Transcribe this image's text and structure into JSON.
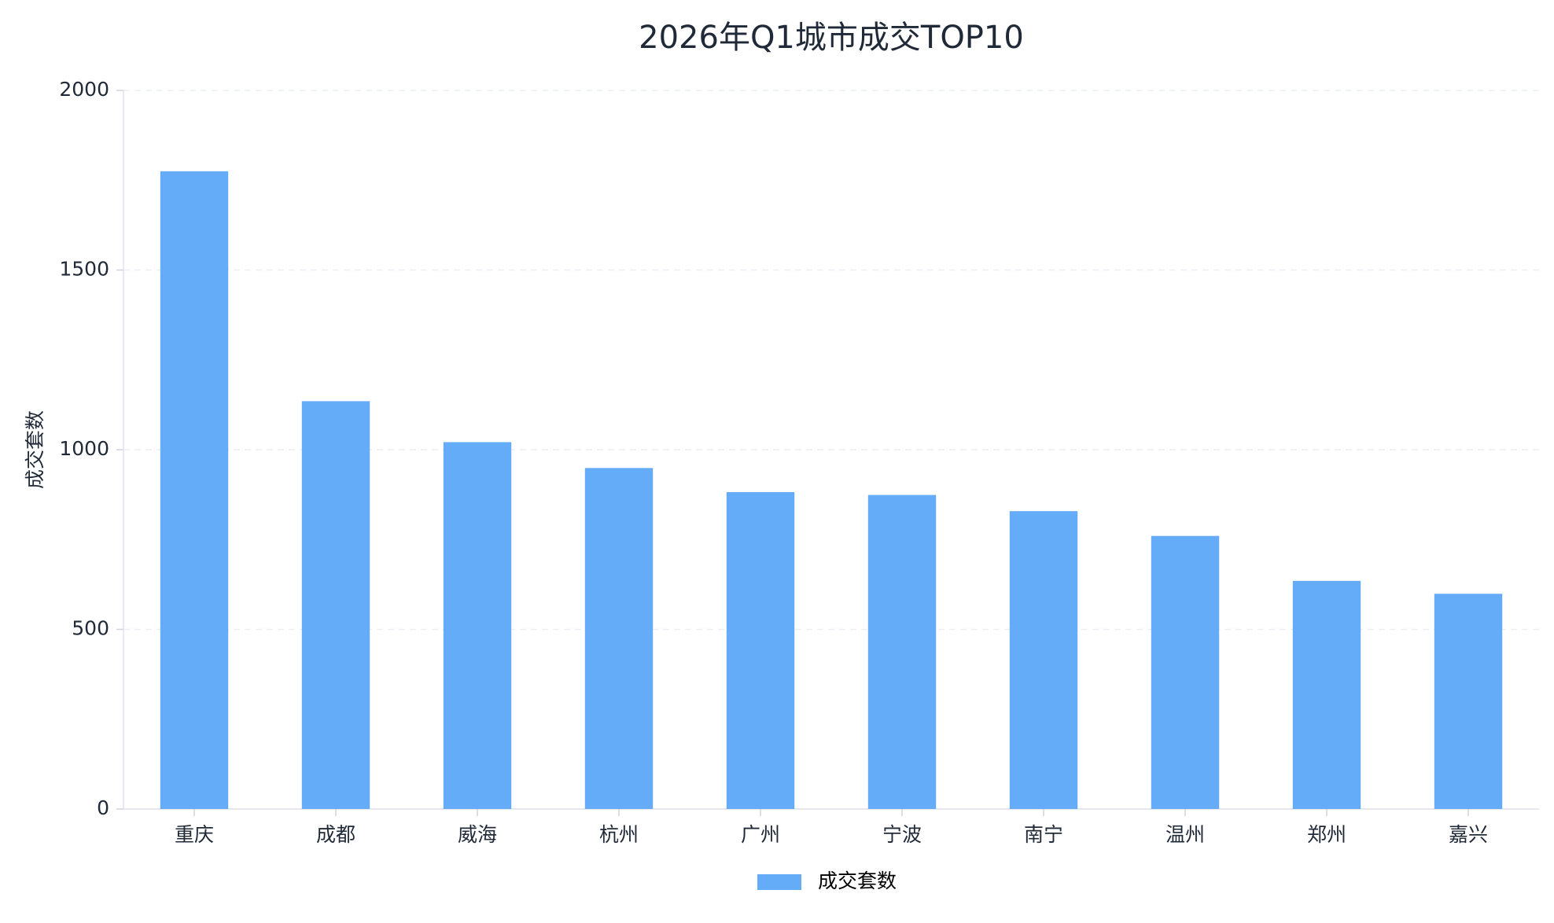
{
  "chart_data": {
    "type": "bar",
    "title": "2026年Q1城市成交TOP10",
    "y_label": "成交套数",
    "categories": [
      "重庆",
      "成都",
      "威海",
      "杭州",
      "广州",
      "宁波",
      "南宁",
      "温州",
      "郑州",
      "嘉兴"
    ],
    "series": [
      {
        "name": "成交套数",
        "color": "#64abf8",
        "values": [
          1775,
          1135,
          1021,
          949,
          882,
          874,
          829,
          760,
          635,
          599
        ]
      }
    ],
    "ylim": [
      0,
      2000
    ],
    "yticks": [
      0,
      500,
      1000,
      1500,
      2000
    ],
    "grid": true,
    "legend": "bottom"
  }
}
